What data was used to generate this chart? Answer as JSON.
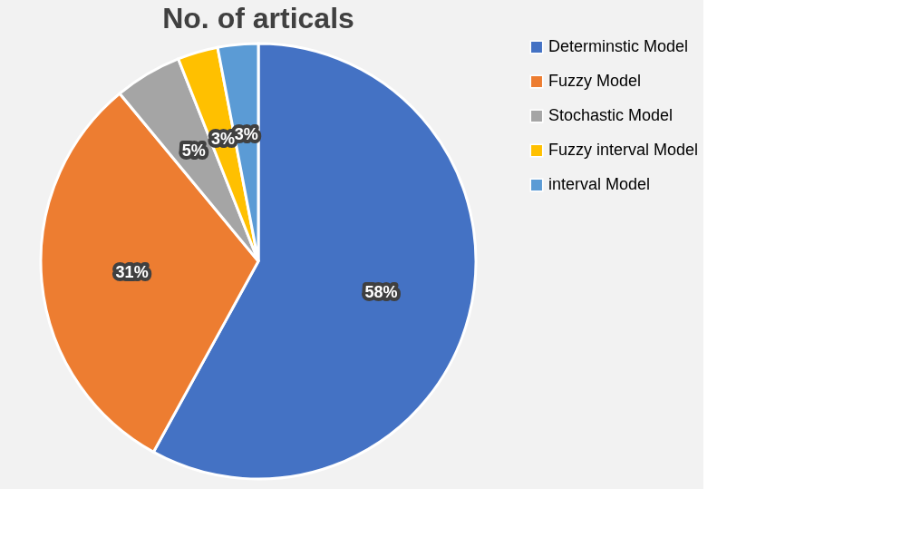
{
  "chart_data": {
    "type": "pie",
    "title": "No. of articals",
    "categories": [
      "Determinstic Model",
      "Fuzzy Model",
      "Stochastic Model",
      "Fuzzy interval Model",
      "interval Model"
    ],
    "values": [
      58,
      31,
      5,
      3,
      3
    ],
    "colors": [
      "#4472c4",
      "#ed7d31",
      "#a5a5a5",
      "#ffc000",
      "#5b9bd5"
    ],
    "value_labels": [
      "58%",
      "31%",
      "5%",
      "3%",
      "3%"
    ],
    "legend": "right"
  }
}
